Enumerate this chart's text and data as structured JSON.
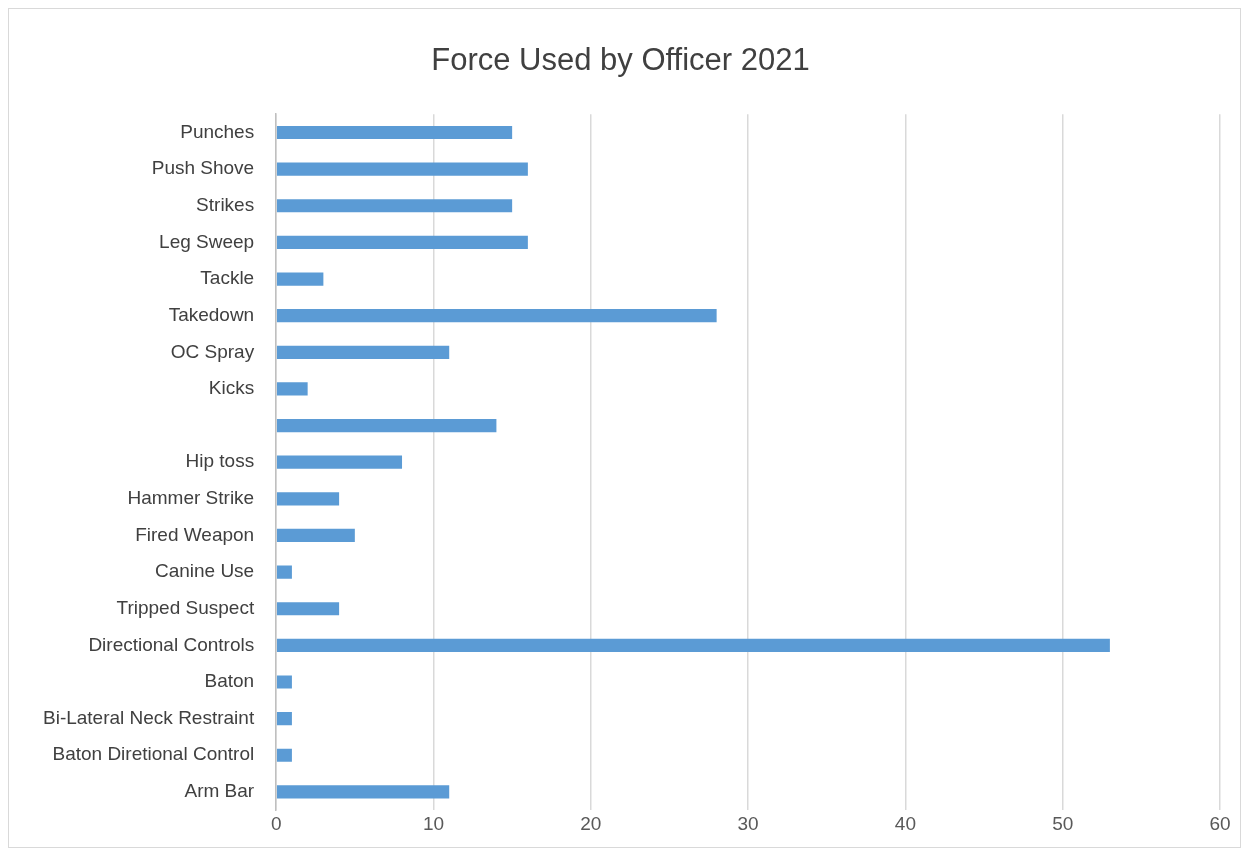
{
  "chart_data": {
    "type": "bar",
    "orientation": "horizontal",
    "title": "Force Used by Officer 2021",
    "categories": [
      "Punches",
      "Push Shove",
      "Strikes",
      "Leg Sweep",
      "Tackle",
      "Takedown",
      "OC Spray",
      "Kicks",
      null,
      "Hip toss",
      "Hammer Strike",
      "Fired Weapon",
      "Canine Use",
      "Tripped Suspect",
      "Directional Controls",
      "Baton",
      "Bi-Lateral Neck Restraint",
      "Baton Diretional Control",
      "Arm Bar"
    ],
    "values": [
      15,
      16,
      15,
      16,
      3,
      28,
      11,
      2,
      14,
      8,
      4,
      5,
      1,
      4,
      53,
      1,
      1,
      1,
      11
    ],
    "color": "#5b9bd5",
    "xlim": [
      0,
      60
    ],
    "xticks": [
      0,
      10,
      20,
      30,
      40,
      50,
      60
    ],
    "grid": "x",
    "legend": false
  }
}
